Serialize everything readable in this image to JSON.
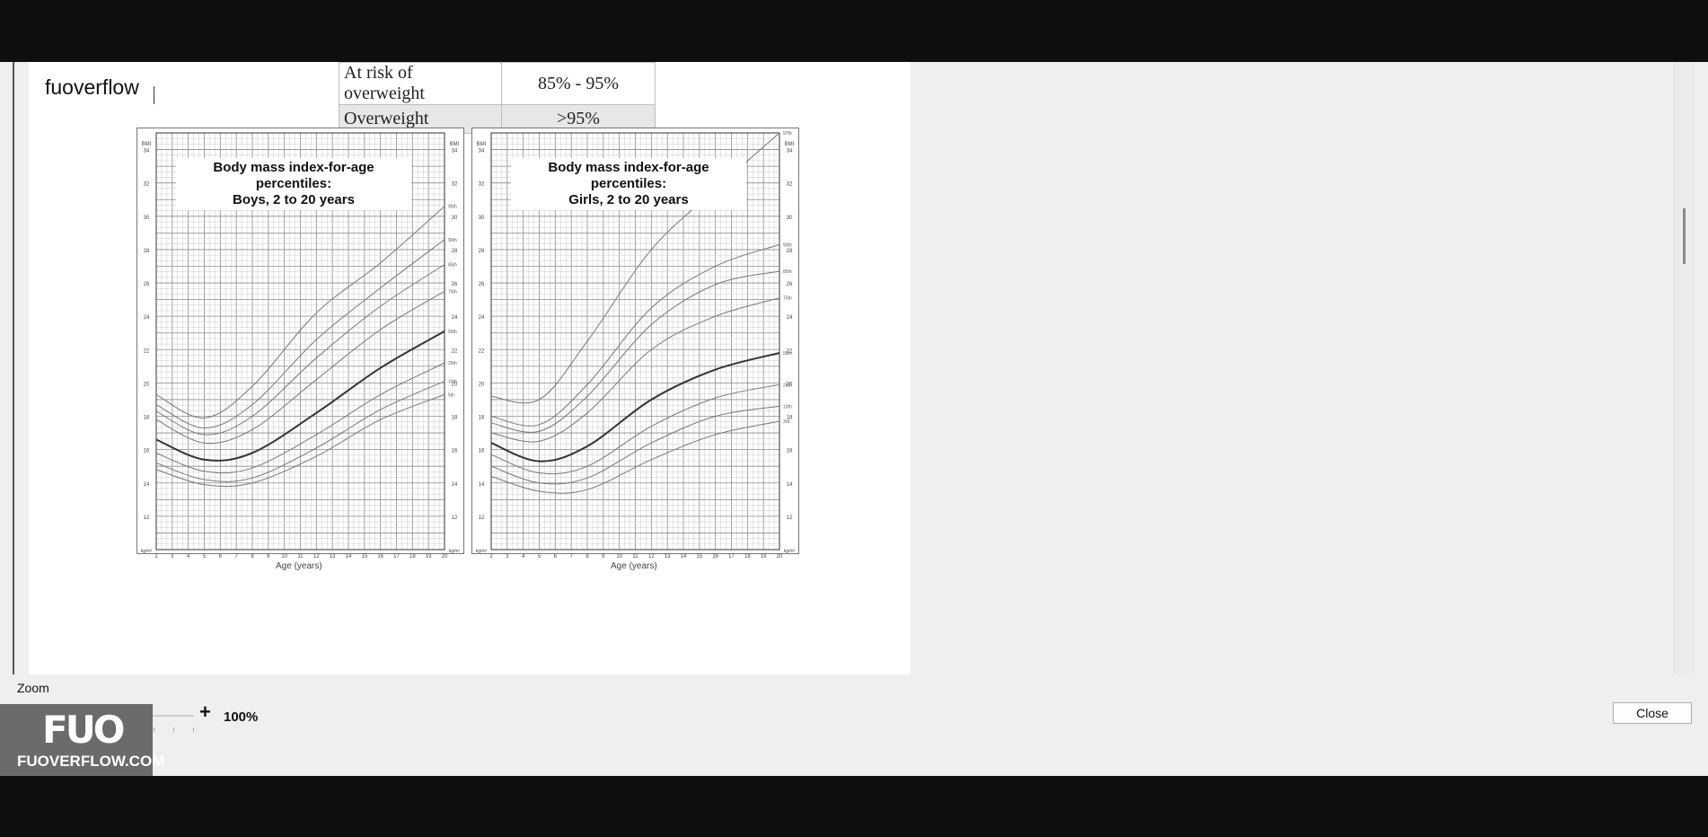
{
  "document": {
    "title": "fuoverflow"
  },
  "risk_table": {
    "rows": [
      {
        "category": "At risk of overweight",
        "range": "85% - 95%"
      },
      {
        "category": "Overweight",
        "range": ">95%"
      }
    ]
  },
  "chart_data": [
    {
      "type": "line",
      "title": "Body mass index-for-age percentiles:",
      "subtitle": "Boys, 2 to 20 years",
      "xlabel": "Age (years)",
      "ylabel": "BMI",
      "y_unit": "kg/m²",
      "xlim": [
        2,
        20
      ],
      "ylim": [
        10,
        35
      ],
      "x_ticks": [
        2,
        3,
        4,
        5,
        6,
        7,
        8,
        9,
        10,
        11,
        12,
        13,
        14,
        15,
        16,
        17,
        18,
        19,
        20
      ],
      "y_ticks": [
        12,
        14,
        16,
        18,
        20,
        22,
        24,
        26,
        28,
        30,
        32,
        34
      ],
      "x": [
        2,
        5,
        8,
        12,
        16,
        20
      ],
      "series": [
        {
          "name": "95th",
          "values": [
            19.3,
            17.9,
            19.8,
            24.2,
            27.2,
            30.6
          ]
        },
        {
          "name": "90th",
          "values": [
            18.7,
            17.3,
            18.7,
            22.6,
            25.7,
            28.6
          ]
        },
        {
          "name": "85th",
          "values": [
            18.3,
            16.9,
            18.0,
            21.5,
            24.6,
            27.1
          ]
        },
        {
          "name": "75th",
          "values": [
            17.8,
            16.4,
            17.2,
            20.2,
            23.2,
            25.5
          ]
        },
        {
          "name": "50th",
          "values": [
            16.6,
            15.4,
            15.8,
            18.2,
            20.9,
            23.1
          ]
        },
        {
          "name": "25th",
          "values": [
            15.8,
            14.7,
            14.9,
            16.9,
            19.3,
            21.2
          ]
        },
        {
          "name": "10th",
          "values": [
            15.2,
            14.2,
            14.3,
            16.1,
            18.4,
            20.1
          ]
        },
        {
          "name": "5th",
          "values": [
            14.8,
            13.9,
            14.0,
            15.6,
            17.8,
            19.3
          ]
        }
      ]
    },
    {
      "type": "line",
      "title": "Body mass index-for-age percentiles:",
      "subtitle": "Girls, 2 to 20 years",
      "xlabel": "Age (years)",
      "ylabel": "BMI",
      "y_unit": "kg/m²",
      "xlim": [
        2,
        20
      ],
      "ylim": [
        10,
        35
      ],
      "x_ticks": [
        2,
        3,
        4,
        5,
        6,
        7,
        8,
        9,
        10,
        11,
        12,
        13,
        14,
        15,
        16,
        17,
        18,
        19,
        20
      ],
      "y_ticks": [
        12,
        14,
        16,
        18,
        20,
        22,
        24,
        26,
        28,
        30,
        32,
        34
      ],
      "x": [
        2,
        5,
        8,
        12,
        16,
        20
      ],
      "series": [
        {
          "name": "97th",
          "values": [
            19.2,
            19.0,
            22.5,
            28.0,
            31.6,
            35.0
          ]
        },
        {
          "name": "90th",
          "values": [
            18.0,
            17.5,
            19.9,
            24.5,
            27.0,
            28.3
          ]
        },
        {
          "name": "85th",
          "values": [
            17.6,
            17.1,
            19.2,
            23.5,
            25.9,
            26.7
          ]
        },
        {
          "name": "75th",
          "values": [
            17.0,
            16.5,
            18.2,
            22.0,
            24.0,
            25.1
          ]
        },
        {
          "name": "50th",
          "values": [
            16.4,
            15.3,
            16.2,
            19.0,
            20.8,
            21.8
          ]
        },
        {
          "name": "25th",
          "values": [
            15.7,
            14.6,
            15.0,
            17.4,
            19.1,
            19.9
          ]
        },
        {
          "name": "10th",
          "values": [
            15.0,
            14.0,
            14.3,
            16.4,
            18.0,
            18.6
          ]
        },
        {
          "name": "3rd",
          "values": [
            14.4,
            13.5,
            13.6,
            15.4,
            16.9,
            17.7
          ]
        }
      ]
    }
  ],
  "zoom": {
    "label": "Zoom",
    "minus": "-",
    "plus": "+",
    "value": "100%",
    "level": 1.0,
    "range": [
      0.25,
      4.0
    ]
  },
  "buttons": {
    "close": "Close"
  },
  "watermark": {
    "mark": "FUO",
    "site": "FUOVERFLOW.COM"
  }
}
